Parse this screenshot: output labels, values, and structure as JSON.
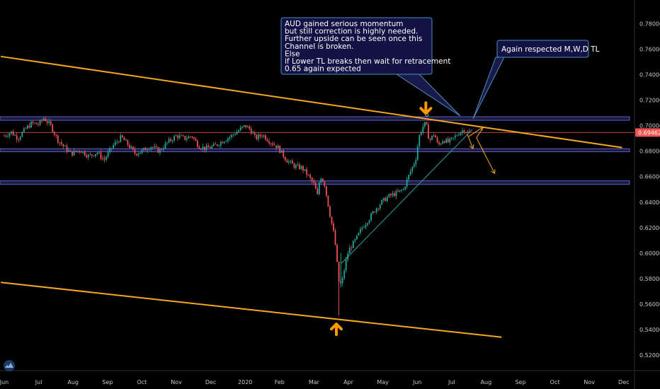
{
  "chart_data": {
    "type": "candlestick",
    "instrument": "AUDUSD",
    "y_axis": {
      "ticks": [
        "0.78000",
        "0.76000",
        "0.74000",
        "0.72000",
        "0.70000",
        "0.68000",
        "0.66000",
        "0.64000",
        "0.62000",
        "0.60000",
        "0.58000",
        "0.56000",
        "0.54000",
        "0.52000"
      ],
      "tick_values": [
        0.78,
        0.76,
        0.74,
        0.72,
        0.7,
        0.68,
        0.66,
        0.64,
        0.62,
        0.6,
        0.58,
        0.56,
        0.54,
        0.52
      ],
      "ylim": [
        0.5135,
        0.7935
      ]
    },
    "x_axis": {
      "ticks": [
        "Jun",
        "Jul",
        "Aug",
        "Sep",
        "Oct",
        "Nov",
        "Dec",
        "2020",
        "Feb",
        "Mar",
        "Apr",
        "May",
        "Jun",
        "Jul",
        "Aug",
        "Sep",
        "Oct",
        "Nov",
        "Dec"
      ],
      "tick_index": [
        0,
        1,
        2,
        3,
        4,
        5,
        6,
        7,
        8,
        9,
        10,
        11,
        12,
        13,
        14,
        15,
        16,
        17,
        18
      ]
    },
    "current_price": {
      "label": "0.69462",
      "value": 0.69462,
      "color": "#ef5350"
    },
    "price_path": [
      [
        0.0,
        0.692
      ],
      [
        0.2,
        0.695
      ],
      [
        0.4,
        0.69
      ],
      [
        0.6,
        0.697
      ],
      [
        0.8,
        0.702
      ],
      [
        1.0,
        0.701
      ],
      [
        1.15,
        0.706
      ],
      [
        1.35,
        0.7
      ],
      [
        1.55,
        0.689
      ],
      [
        1.75,
        0.683
      ],
      [
        1.95,
        0.678
      ],
      [
        2.2,
        0.681
      ],
      [
        2.45,
        0.676
      ],
      [
        2.7,
        0.679
      ],
      [
        2.9,
        0.673
      ],
      [
        3.15,
        0.684
      ],
      [
        3.4,
        0.691
      ],
      [
        3.6,
        0.685
      ],
      [
        3.8,
        0.678
      ],
      [
        4.0,
        0.68
      ],
      [
        4.25,
        0.684
      ],
      [
        4.5,
        0.68
      ],
      [
        4.75,
        0.687
      ],
      [
        5.0,
        0.692
      ],
      [
        5.25,
        0.69
      ],
      [
        5.45,
        0.692
      ],
      [
        5.65,
        0.684
      ],
      [
        5.85,
        0.682
      ],
      [
        6.1,
        0.684
      ],
      [
        6.35,
        0.688
      ],
      [
        6.6,
        0.692
      ],
      [
        6.85,
        0.697
      ],
      [
        7.0,
        0.7
      ],
      [
        7.15,
        0.697
      ],
      [
        7.3,
        0.69
      ],
      [
        7.5,
        0.693
      ],
      [
        7.7,
        0.688
      ],
      [
        7.95,
        0.683
      ],
      [
        8.2,
        0.673
      ],
      [
        8.45,
        0.668
      ],
      [
        8.65,
        0.667
      ],
      [
        8.85,
        0.66
      ],
      [
        9.0,
        0.654
      ],
      [
        9.1,
        0.645
      ],
      [
        9.18,
        0.661
      ],
      [
        9.3,
        0.655
      ],
      [
        9.45,
        0.632
      ],
      [
        9.6,
        0.612
      ],
      [
        9.72,
        0.578
      ],
      [
        9.8,
        0.575
      ],
      [
        9.9,
        0.59
      ],
      [
        10.0,
        0.602
      ],
      [
        10.2,
        0.61
      ],
      [
        10.4,
        0.62
      ],
      [
        10.6,
        0.627
      ],
      [
        10.8,
        0.635
      ],
      [
        11.0,
        0.641
      ],
      [
        11.2,
        0.645
      ],
      [
        11.4,
        0.647
      ],
      [
        11.6,
        0.65
      ],
      [
        11.8,
        0.664
      ],
      [
        11.95,
        0.673
      ],
      [
        12.05,
        0.691
      ],
      [
        12.15,
        0.699
      ],
      [
        12.25,
        0.702
      ],
      [
        12.35,
        0.688
      ],
      [
        12.5,
        0.694
      ],
      [
        12.6,
        0.684
      ],
      [
        12.75,
        0.689
      ],
      [
        12.9,
        0.687
      ],
      [
        13.05,
        0.69
      ],
      [
        13.2,
        0.694
      ],
      [
        13.35,
        0.697
      ],
      [
        13.45,
        0.695
      ],
      [
        13.55,
        0.694
      ]
    ],
    "annotations": [
      {
        "type": "text-box",
        "lines": [
          "AUD gained serious momentum",
          "but still correction is highly needed.",
          "Further upside can be seen once this",
          "Channel is broken.",
          "Else",
          "if Lower TL breaks then wait for retracement",
          "0.65 again expected"
        ]
      },
      {
        "type": "text-box",
        "lines": [
          "Again respected M,W,D TL"
        ]
      },
      {
        "type": "trendline",
        "color": "#f5a623",
        "from": [
          -0.1,
          0.7543
        ],
        "to": [
          17.95,
          0.6828
        ],
        "label": "Upper channel line"
      },
      {
        "type": "trendline",
        "color": "#f5a623",
        "from": [
          -0.1,
          0.577
        ],
        "to": [
          14.45,
          0.534
        ],
        "label": "Lower channel line"
      },
      {
        "type": "trendline",
        "color": "#26a69a",
        "from": [
          9.8,
          0.592
        ],
        "to": [
          13.6,
          0.697
        ],
        "label": "Lower TL"
      },
      {
        "type": "zone",
        "color": "#3f3f8f",
        "y_range": [
          0.7042,
          0.707
        ]
      },
      {
        "type": "zone",
        "color": "#3f3f8f",
        "y_range": [
          0.6795,
          0.6819
        ]
      },
      {
        "type": "zone",
        "color": "#3f3f8f",
        "y_range": [
          0.6539,
          0.6567
        ]
      },
      {
        "type": "hline",
        "color": "#ef5350",
        "value": 0.69462
      },
      {
        "type": "arrow",
        "direction": "down",
        "color": "#ff9800",
        "at": [
          12.25,
          0.713
        ]
      },
      {
        "type": "arrow",
        "direction": "up",
        "color": "#ff9800",
        "at": [
          9.65,
          0.541
        ]
      }
    ]
  }
}
